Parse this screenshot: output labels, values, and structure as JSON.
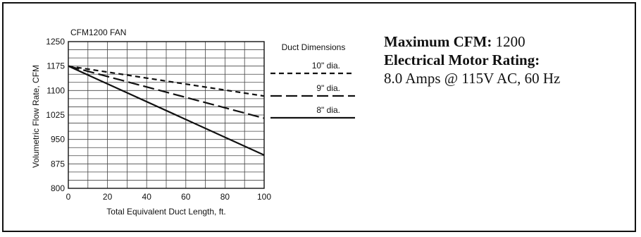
{
  "chart_data": {
    "type": "line",
    "title": "CFM1200 FAN",
    "xlabel": "Total Equivalent Duct Length, ft.",
    "ylabel": "Volumetric Flow Rate, CFM",
    "xlim": [
      0,
      100
    ],
    "ylim": [
      800,
      1250
    ],
    "x_ticks": [
      0,
      20,
      40,
      60,
      80,
      100
    ],
    "y_ticks": [
      800,
      875,
      950,
      1025,
      1100,
      1175,
      1250
    ],
    "grid": true,
    "legend_title": "Duct Dimensions",
    "legend_position": "right",
    "series": [
      {
        "name": "10\" dia.",
        "style": "short-dash",
        "x": [
          0,
          100
        ],
        "y": [
          1175,
          1083
        ]
      },
      {
        "name": "9\" dia.",
        "style": "long-dash",
        "x": [
          0,
          100
        ],
        "y": [
          1175,
          1015
        ]
      },
      {
        "name": "8\" dia.",
        "style": "solid",
        "x": [
          0,
          100
        ],
        "y": [
          1175,
          902
        ]
      }
    ]
  },
  "specs": {
    "max_cfm_label": "Maximum CFM:",
    "max_cfm_value": "1200",
    "motor_label": "Electrical Motor Rating:",
    "motor_value": "8.0 Amps @ 115V AC, 60 Hz"
  }
}
